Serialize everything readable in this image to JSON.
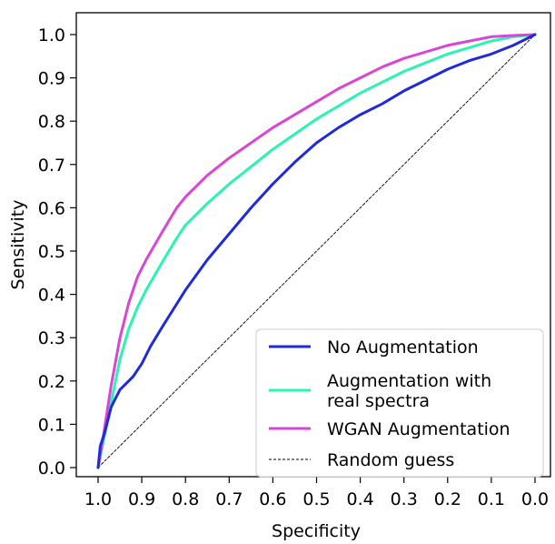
{
  "chart_data": {
    "type": "line",
    "title": "",
    "xlabel": "Specificity",
    "ylabel": "Sensitivity",
    "xlim": [
      1.0,
      0.0
    ],
    "ylim": [
      0.0,
      1.0
    ],
    "x_reversed": true,
    "grid": false,
    "legend_position": "lower-right",
    "x_ticks": [
      "1.0",
      "0.9",
      "0.8",
      "0.7",
      "0.6",
      "0.5",
      "0.4",
      "0.3",
      "0.2",
      "0.1",
      "0.0"
    ],
    "y_ticks": [
      "0.0",
      "0.1",
      "0.2",
      "0.3",
      "0.4",
      "0.5",
      "0.6",
      "0.7",
      "0.8",
      "0.9",
      "1.0"
    ],
    "series": [
      {
        "name": "No Augmentation",
        "color": "#1f2bd9",
        "style": "solid",
        "x": [
          1.0,
          0.995,
          0.985,
          0.97,
          0.95,
          0.92,
          0.9,
          0.88,
          0.85,
          0.8,
          0.75,
          0.7,
          0.65,
          0.6,
          0.55,
          0.5,
          0.45,
          0.4,
          0.35,
          0.3,
          0.25,
          0.2,
          0.15,
          0.1,
          0.05,
          0.0
        ],
        "y": [
          0.0,
          0.05,
          0.08,
          0.14,
          0.18,
          0.21,
          0.24,
          0.28,
          0.33,
          0.41,
          0.48,
          0.54,
          0.6,
          0.655,
          0.705,
          0.75,
          0.785,
          0.815,
          0.84,
          0.87,
          0.895,
          0.92,
          0.94,
          0.955,
          0.975,
          1.0
        ]
      },
      {
        "name": "Augmentation with\nreal spectra",
        "color": "#2af5b0",
        "style": "solid",
        "x": [
          1.0,
          0.99,
          0.97,
          0.95,
          0.93,
          0.91,
          0.89,
          0.87,
          0.85,
          0.82,
          0.8,
          0.75,
          0.7,
          0.65,
          0.6,
          0.55,
          0.5,
          0.45,
          0.4,
          0.35,
          0.3,
          0.25,
          0.2,
          0.15,
          0.1,
          0.05,
          0.0
        ],
        "y": [
          0.0,
          0.05,
          0.15,
          0.25,
          0.32,
          0.37,
          0.41,
          0.445,
          0.48,
          0.53,
          0.56,
          0.61,
          0.655,
          0.695,
          0.735,
          0.77,
          0.805,
          0.835,
          0.865,
          0.89,
          0.915,
          0.935,
          0.955,
          0.97,
          0.985,
          0.995,
          1.0
        ]
      },
      {
        "name": "WGAN Augmentation",
        "color": "#d946d6",
        "style": "solid",
        "x": [
          1.0,
          0.99,
          0.97,
          0.95,
          0.93,
          0.91,
          0.89,
          0.87,
          0.85,
          0.82,
          0.8,
          0.75,
          0.7,
          0.65,
          0.6,
          0.55,
          0.5,
          0.45,
          0.4,
          0.35,
          0.3,
          0.25,
          0.2,
          0.15,
          0.1,
          0.05,
          0.0
        ],
        "y": [
          0.0,
          0.06,
          0.19,
          0.3,
          0.38,
          0.44,
          0.48,
          0.515,
          0.55,
          0.6,
          0.625,
          0.675,
          0.715,
          0.75,
          0.785,
          0.815,
          0.845,
          0.875,
          0.9,
          0.925,
          0.945,
          0.96,
          0.975,
          0.985,
          0.995,
          0.998,
          1.0
        ]
      },
      {
        "name": "Random guess",
        "color": "#000000",
        "style": "dashed",
        "x": [
          1.0,
          0.0
        ],
        "y": [
          0.0,
          1.0
        ]
      }
    ]
  }
}
